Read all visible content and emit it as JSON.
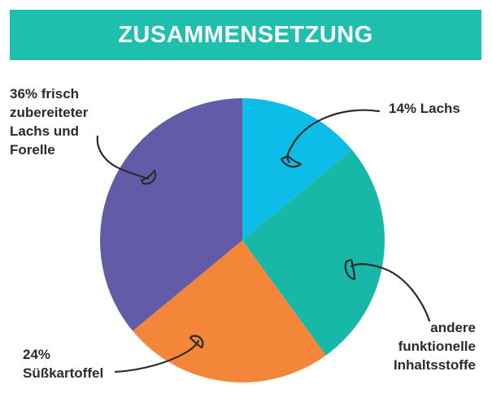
{
  "colors": {
    "banner": "#1fbfae",
    "text": "#2b2b2b",
    "arrows": "#2b2b2b"
  },
  "title": "ZUSAMMENSETZUNG",
  "chart_data": {
    "type": "pie",
    "title": "ZUSAMMENSETZUNG",
    "start_angle_deg": 0,
    "direction": "clockwise",
    "slices": [
      {
        "label_lines": [
          "14% Lachs"
        ],
        "value": 14,
        "color": "#0dbde8"
      },
      {
        "label_lines": [
          "andere",
          "funktionelle",
          "Inhaltsstoffe"
        ],
        "value": 26,
        "color": "#17b8a8"
      },
      {
        "label_lines": [
          "24%",
          "Süßkartoffel"
        ],
        "value": 24,
        "color": "#f4863a"
      },
      {
        "label_lines": [
          "36% frisch",
          "zubereiteter",
          "Lachs und",
          "Forelle"
        ],
        "value": 36,
        "color": "#625ca8"
      }
    ]
  }
}
